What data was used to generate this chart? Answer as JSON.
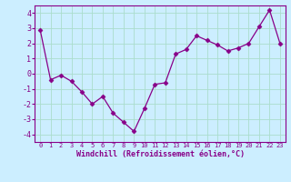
{
  "x": [
    0,
    1,
    2,
    3,
    4,
    5,
    6,
    7,
    8,
    9,
    10,
    11,
    12,
    13,
    14,
    15,
    16,
    17,
    18,
    19,
    20,
    21,
    22,
    23
  ],
  "y": [
    2.9,
    -0.4,
    -0.1,
    -0.5,
    -1.2,
    -2.0,
    -1.5,
    -2.6,
    -3.2,
    -3.8,
    -2.3,
    -0.7,
    -0.6,
    1.3,
    1.6,
    2.5,
    2.2,
    1.9,
    1.5,
    1.7,
    2.0,
    3.1,
    4.2,
    2.0
  ],
  "line_color": "#880088",
  "marker": "D",
  "marker_size": 2.5,
  "bg_color": "#cceeff",
  "grid_color": "#aaddcc",
  "xlabel": "Windchill (Refroidissement éolien,°C)",
  "xlabel_color": "#880088",
  "tick_color": "#880088",
  "ylim": [
    -4.5,
    4.5
  ],
  "yticks": [
    -4,
    -3,
    -2,
    -1,
    0,
    1,
    2,
    3,
    4
  ],
  "xlim": [
    -0.5,
    23.5
  ],
  "xticks": [
    0,
    1,
    2,
    3,
    4,
    5,
    6,
    7,
    8,
    9,
    10,
    11,
    12,
    13,
    14,
    15,
    16,
    17,
    18,
    19,
    20,
    21,
    22,
    23
  ],
  "xtick_labels": [
    "0",
    "1",
    "2",
    "3",
    "4",
    "5",
    "6",
    "7",
    "8",
    "9",
    "10",
    "11",
    "12",
    "13",
    "14",
    "15",
    "16",
    "17",
    "18",
    "19",
    "20",
    "21",
    "22",
    "23"
  ]
}
